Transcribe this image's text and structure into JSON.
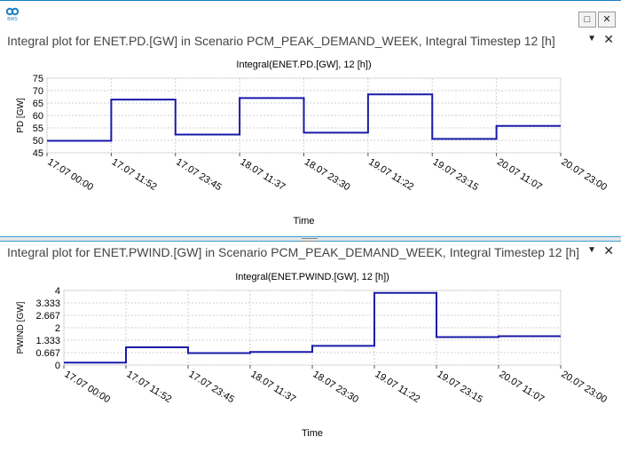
{
  "window": {
    "icon_label": "BWS",
    "restore_glyph": "□",
    "close_glyph": "✕"
  },
  "panels": [
    {
      "title": "Integral plot for ENET.PD.[GW] in Scenario PCM_PEAK_DEMAND_WEEK, Integral Timestep 12 [h]",
      "menu_glyph": "▼",
      "close_glyph": "✕"
    },
    {
      "title": "Integral plot for ENET.PWIND.[GW] in Scenario PCM_PEAK_DEMAND_WEEK, Integral Timestep 12 [h]",
      "menu_glyph": "▼",
      "close_glyph": "✕"
    }
  ],
  "chart_data": [
    {
      "type": "line",
      "step": true,
      "title": "Integral(ENET.PD.[GW], 12 [h])",
      "xlabel": "Time",
      "ylabel": "PD [GW]",
      "ylim": [
        45,
        75
      ],
      "yticks": [
        "45",
        "50",
        "55",
        "60",
        "65",
        "70",
        "75"
      ],
      "xticks": [
        "17.07 00:00",
        "17.07 11:52",
        "17.07 23:45",
        "18.07 11:37",
        "18.07 23:30",
        "19.07 11:22",
        "19.07 23:15",
        "20.07 11:07",
        "20.07 23:00"
      ],
      "values": [
        49.8,
        66.4,
        52.3,
        67.0,
        53.1,
        68.5,
        50.6,
        55.8
      ],
      "color": "#1a1aa8"
    },
    {
      "type": "line",
      "step": true,
      "title": "Integral(ENET.PWIND.[GW], 12 [h])",
      "xlabel": "Time",
      "ylabel": "PWIND [GW]",
      "ylim": [
        0,
        4
      ],
      "yticks": [
        "0",
        "0.667",
        "1.333",
        "2",
        "2.667",
        "3.333",
        "4"
      ],
      "xticks": [
        "17.07 00:00",
        "17.07 11:52",
        "17.07 23:45",
        "18.07 11:37",
        "18.07 23:30",
        "19.07 11:22",
        "19.07 23:15",
        "20.07 11:07",
        "20.07 23:00"
      ],
      "values": [
        0.13,
        0.95,
        0.64,
        0.7,
        1.03,
        3.87,
        1.5,
        1.55
      ],
      "color": "#1a1aa8"
    }
  ]
}
